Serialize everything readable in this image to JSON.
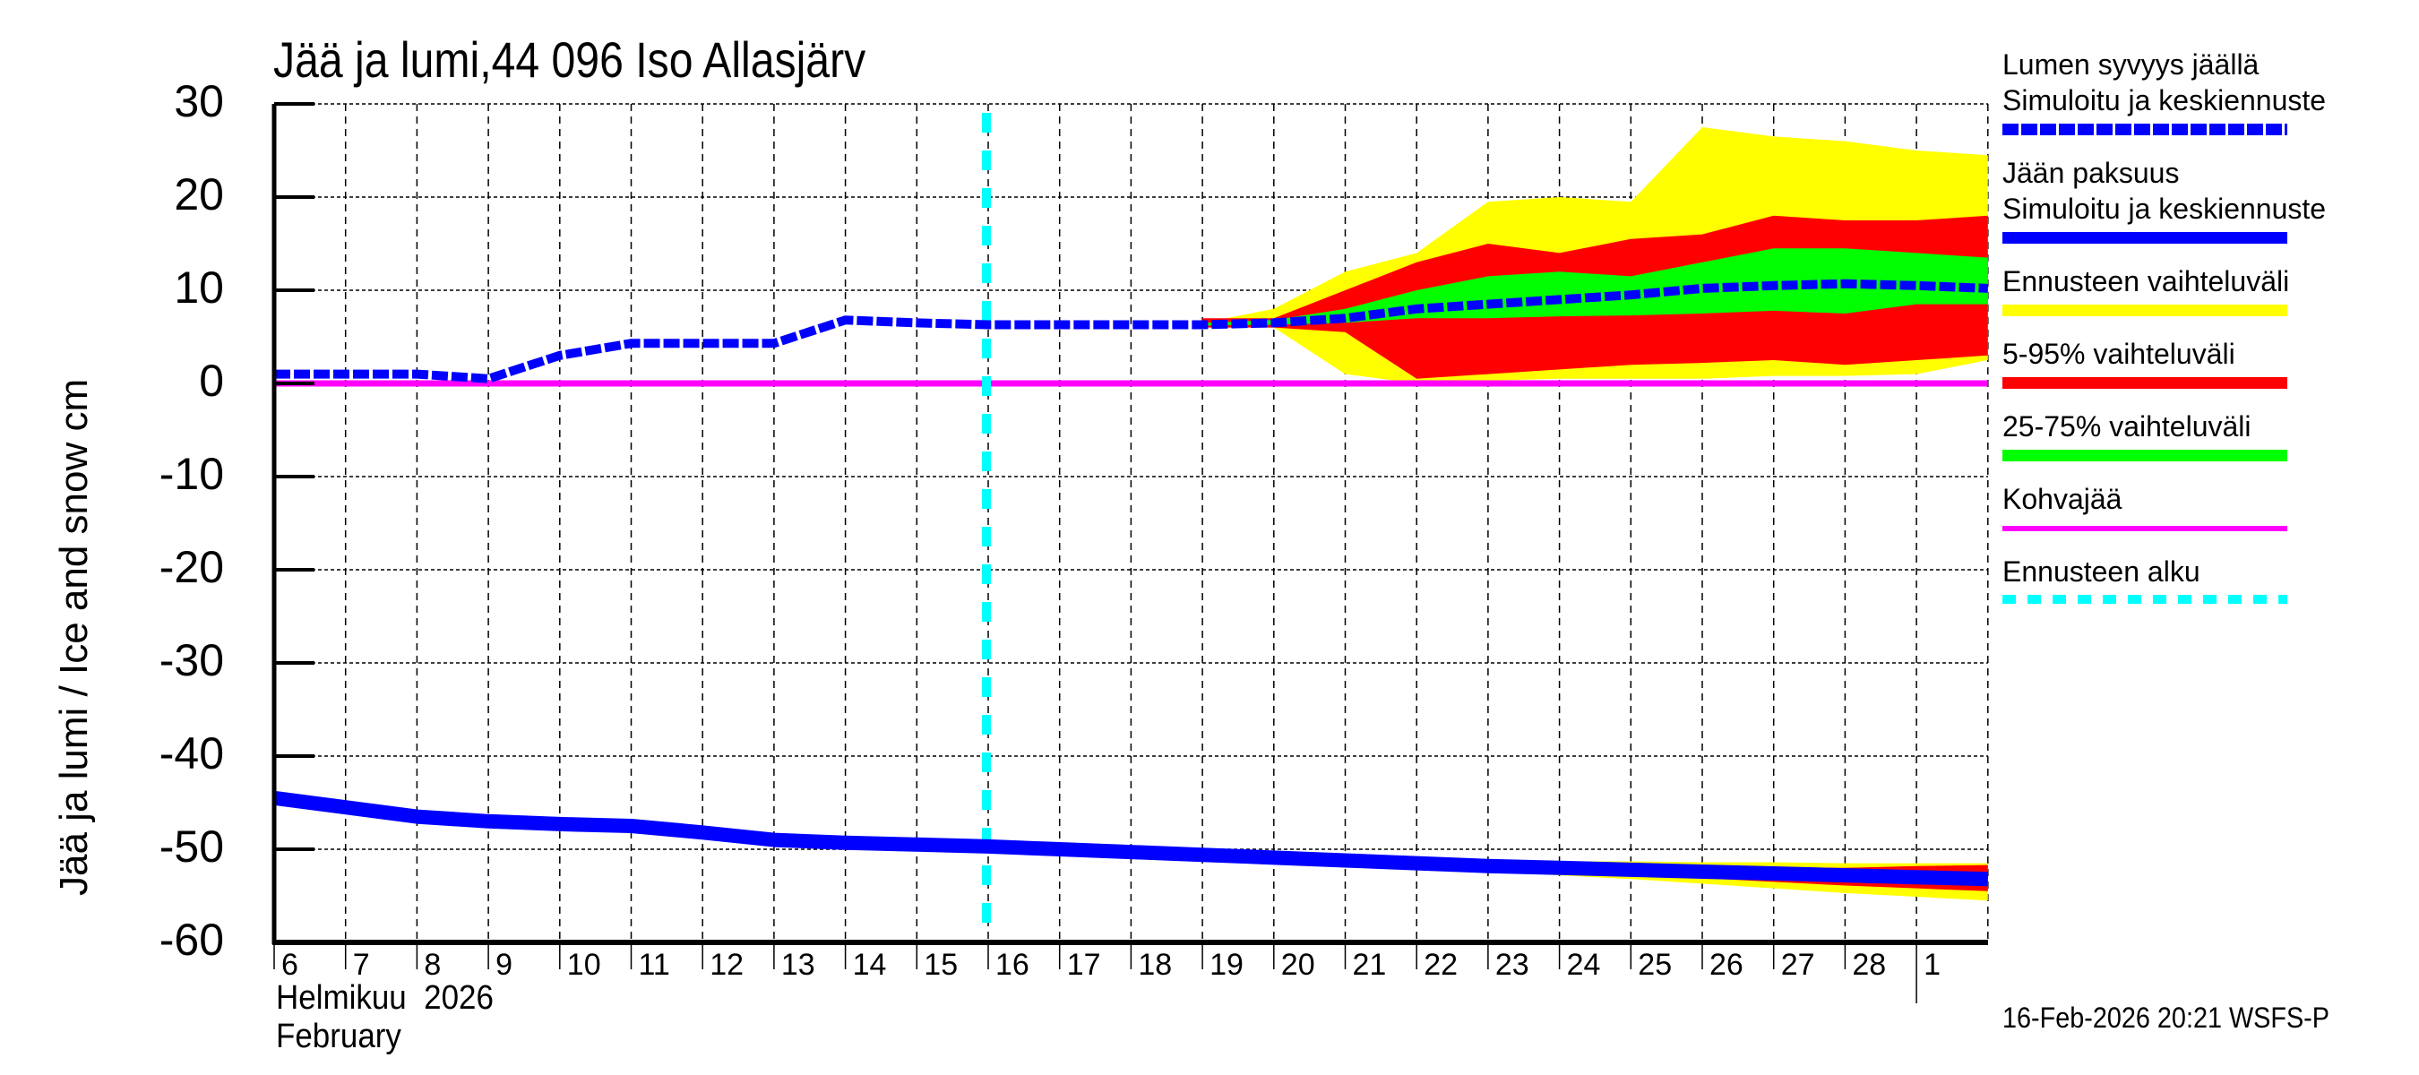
{
  "header": {
    "title": "Jää ja lumi,44 096 Iso Allasjärv",
    "y_axis_label": "Jää ja lumi / Ice and snow    cm"
  },
  "x_axis": {
    "month_fi": "Helmikuu  2026",
    "month_en": "February",
    "ticks": [
      "6",
      "7",
      "8",
      "9",
      "10",
      "11",
      "12",
      "13",
      "14",
      "15",
      "16",
      "17",
      "18",
      "19",
      "20",
      "21",
      "22",
      "23",
      "24",
      "25",
      "26",
      "27",
      "28",
      "1"
    ]
  },
  "y_axis": {
    "ticks": [
      "30",
      "20",
      "10",
      "0",
      "-10",
      "-20",
      "-30",
      "-40",
      "-50",
      "-60"
    ]
  },
  "legend": {
    "items": [
      {
        "label": "Lumen syvyys jäällä",
        "label2": "Simuloitu ja keskiennuste",
        "color": "#0000ff",
        "style": "dashed"
      },
      {
        "label": "Jään paksuus",
        "label2": "Simuloitu ja keskiennuste",
        "color": "#0000ff",
        "style": "solid"
      },
      {
        "label": "Ennusteen vaihteluväli",
        "color": "#ffff00",
        "style": "solid"
      },
      {
        "label": "5-95% vaihteluväli",
        "color": "#ff0000",
        "style": "solid"
      },
      {
        "label": "25-75% vaihteluväli",
        "color": "#00ff00",
        "style": "solid"
      },
      {
        "label": "Kohvajää",
        "color": "#ff00ff",
        "style": "thin"
      },
      {
        "label": "Ennusteen alku",
        "color": "#00ffff",
        "style": "dotted"
      }
    ]
  },
  "footer": {
    "timestamp": "16-Feb-2026 20:21 WSFS-P"
  },
  "colors": {
    "snow": "#0000ff",
    "ice": "#0000ff",
    "range_full": "#ffff00",
    "range_5_95": "#ff0000",
    "range_25_75": "#00ff00",
    "kohvajaa": "#ff00ff",
    "forecast_start": "#00ffff"
  },
  "chart_data": {
    "type": "line",
    "title": "Jää ja lumi,44 096 Iso Allasjärv",
    "xlabel": "Helmikuu 2026 / February",
    "ylabel": "Jää ja lumi / Ice and snow cm",
    "ylim": [
      -60,
      30
    ],
    "yticks": [
      30,
      20,
      10,
      0,
      -10,
      -20,
      -30,
      -40,
      -50,
      -60
    ],
    "grid": true,
    "legend_position": "right",
    "x": [
      "Feb 6",
      "Feb 7",
      "Feb 8",
      "Feb 9",
      "Feb 10",
      "Feb 11",
      "Feb 12",
      "Feb 13",
      "Feb 14",
      "Feb 15",
      "Feb 16",
      "Feb 17",
      "Feb 18",
      "Feb 19",
      "Feb 20",
      "Feb 21",
      "Feb 22",
      "Feb 23",
      "Feb 24",
      "Feb 25",
      "Feb 26",
      "Feb 27",
      "Feb 28",
      "Mar 1",
      "Mar 2"
    ],
    "forecast_start_index": 10,
    "series": [
      {
        "name": "Lumen syvyys jäällä – Simuloitu ja keskiennuste",
        "style": "dashed",
        "values": [
          1.0,
          1.0,
          1.0,
          0.5,
          3.0,
          4.3,
          4.3,
          4.3,
          6.8,
          6.5,
          6.3,
          6.3,
          6.3,
          6.3,
          6.5,
          7.0,
          8.0,
          8.5,
          9.0,
          9.5,
          10.2,
          10.5,
          10.7,
          10.5,
          10.2
        ]
      },
      {
        "name": "Jään paksuus – Simuloitu ja keskiennuste",
        "style": "solid",
        "values": [
          -44.5,
          -45.5,
          -46.5,
          -47.0,
          -47.3,
          -47.5,
          -48.2,
          -49.0,
          -49.3,
          -49.5,
          -49.7,
          -50.0,
          -50.3,
          -50.6,
          -50.9,
          -51.2,
          -51.5,
          -51.8,
          -52.0,
          -52.2,
          -52.4,
          -52.6,
          -52.8,
          -53.0,
          -53.2
        ]
      },
      {
        "name": "Kohvajää",
        "style": "thin",
        "values": [
          0,
          0,
          0,
          0,
          0,
          0,
          0,
          0,
          0,
          0,
          0,
          0,
          0,
          0,
          0,
          0,
          0,
          0,
          0,
          0,
          0,
          0,
          0,
          0,
          0
        ]
      }
    ],
    "bands": {
      "start_index": 13,
      "snow": {
        "full_upper": [
          6.5,
          8.0,
          12.0,
          14.0,
          19.5,
          20.0,
          19.5,
          27.5,
          26.5,
          26.0,
          25.0,
          24.5
        ],
        "full_lower": [
          6.0,
          6.0,
          1.0,
          0.0,
          0.3,
          0.5,
          0.5,
          0.5,
          0.8,
          0.8,
          1.0,
          2.5
        ],
        "p95": [
          7.0,
          7.0,
          10.0,
          13.0,
          15.0,
          14.0,
          15.5,
          16.0,
          18.0,
          17.5,
          17.5,
          18.0
        ],
        "p5": [
          6.0,
          6.0,
          5.5,
          0.5,
          1.0,
          1.5,
          2.0,
          2.2,
          2.5,
          2.0,
          2.5,
          3.0
        ],
        "p75": [
          6.5,
          6.8,
          8.0,
          10.0,
          11.5,
          12.0,
          11.5,
          13.0,
          14.5,
          14.5,
          14.0,
          13.5
        ],
        "p25": [
          6.2,
          6.3,
          6.5,
          7.0,
          7.0,
          7.2,
          7.3,
          7.5,
          7.8,
          7.5,
          8.5,
          8.5
        ]
      },
      "ice": {
        "full_upper": [
          -50.6,
          -50.8,
          -51.0,
          -51.1,
          -51.2,
          -51.3,
          -51.3,
          -51.4,
          -51.4,
          -51.5,
          -51.5,
          -51.5
        ],
        "full_lower": [
          -50.6,
          -51.0,
          -51.5,
          -52.0,
          -52.4,
          -52.8,
          -53.2,
          -53.7,
          -54.2,
          -54.7,
          -55.1,
          -55.5
        ],
        "p95": [
          -50.6,
          -50.9,
          -51.2,
          -51.4,
          -51.5,
          -51.6,
          -51.7,
          -51.8,
          -51.9,
          -52.0,
          -51.8,
          -51.7
        ],
        "p5": [
          -50.6,
          -51.0,
          -51.4,
          -51.8,
          -52.1,
          -52.4,
          -52.7,
          -53.1,
          -53.5,
          -53.9,
          -54.2,
          -54.5
        ]
      }
    }
  }
}
